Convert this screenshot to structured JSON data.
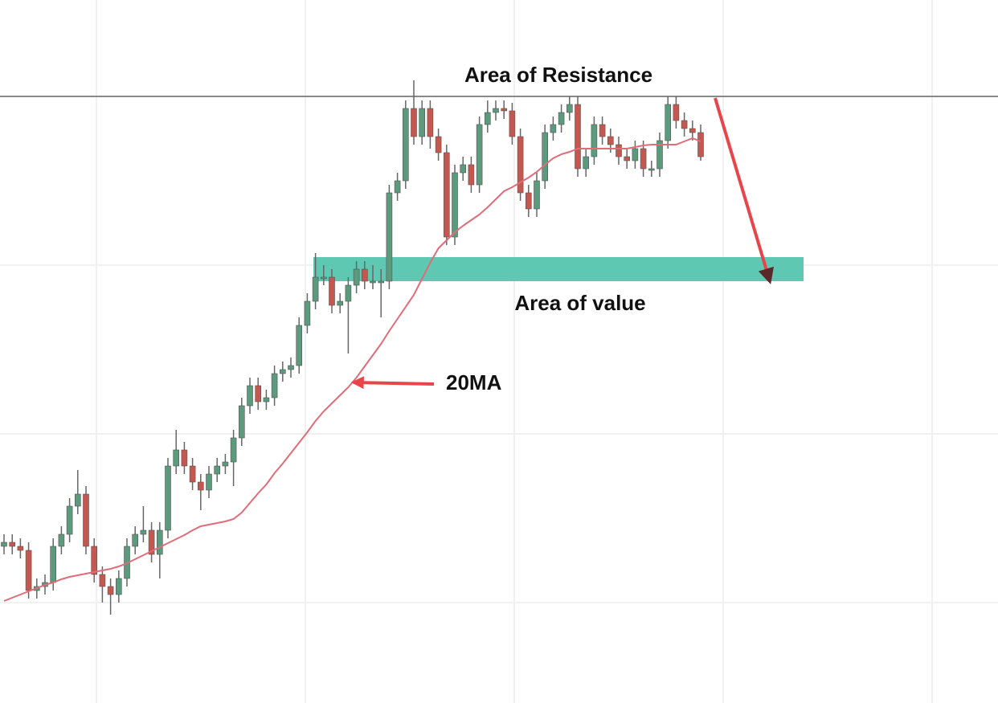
{
  "chart_data": {
    "type": "candlestick",
    "ylim": [
      0,
      875
    ],
    "up_color": "#5b9a7c",
    "down_color": "#c4574f",
    "open": [
      195,
      200,
      195,
      190,
      140,
      145,
      150,
      195,
      210,
      245,
      260,
      195,
      160,
      145,
      135,
      155,
      195,
      210,
      215,
      185,
      215,
      295,
      315,
      295,
      275,
      265,
      285,
      295,
      300,
      330,
      370,
      395,
      375,
      380,
      410,
      415,
      420,
      470,
      500,
      530,
      530,
      495,
      500,
      520,
      540,
      525,
      525,
      525,
      635,
      650,
      740,
      705,
      740,
      705,
      685,
      580,
      660,
      670,
      645,
      720,
      735,
      740,
      737,
      705,
      635,
      615,
      650,
      710,
      720,
      735,
      745,
      665,
      680,
      720,
      705,
      695,
      680,
      675,
      690,
      665,
      665,
      700,
      745,
      725,
      715,
      710
    ],
    "high": [
      210,
      210,
      205,
      200,
      155,
      160,
      205,
      220,
      255,
      290,
      270,
      205,
      170,
      155,
      165,
      205,
      220,
      245,
      225,
      225,
      305,
      340,
      325,
      305,
      285,
      295,
      305,
      310,
      340,
      380,
      405,
      405,
      390,
      420,
      425,
      430,
      480,
      510,
      560,
      545,
      540,
      510,
      530,
      550,
      550,
      545,
      540,
      645,
      660,
      750,
      775,
      750,
      750,
      715,
      695,
      670,
      680,
      680,
      730,
      750,
      750,
      750,
      747,
      715,
      645,
      660,
      720,
      730,
      745,
      755,
      755,
      690,
      730,
      730,
      715,
      705,
      690,
      700,
      700,
      675,
      710,
      755,
      755,
      735,
      725,
      720
    ],
    "low": [
      185,
      185,
      180,
      130,
      130,
      135,
      140,
      185,
      200,
      235,
      185,
      150,
      125,
      110,
      125,
      145,
      185,
      200,
      175,
      155,
      205,
      285,
      285,
      265,
      240,
      255,
      275,
      285,
      270,
      320,
      360,
      365,
      365,
      370,
      400,
      405,
      410,
      460,
      490,
      520,
      485,
      485,
      435,
      510,
      515,
      515,
      480,
      515,
      625,
      640,
      695,
      695,
      690,
      675,
      570,
      570,
      650,
      635,
      635,
      710,
      725,
      727,
      695,
      625,
      605,
      605,
      640,
      700,
      710,
      725,
      655,
      655,
      670,
      695,
      685,
      670,
      665,
      665,
      655,
      655,
      655,
      690,
      715,
      705,
      700,
      675
    ],
    "close": [
      200,
      195,
      190,
      140,
      145,
      150,
      195,
      210,
      245,
      260,
      195,
      160,
      145,
      135,
      155,
      195,
      210,
      215,
      185,
      215,
      295,
      315,
      295,
      275,
      265,
      285,
      295,
      300,
      330,
      370,
      395,
      375,
      380,
      410,
      415,
      420,
      470,
      500,
      530,
      530,
      495,
      500,
      520,
      540,
      525,
      525,
      525,
      635,
      650,
      740,
      705,
      740,
      705,
      685,
      580,
      660,
      670,
      645,
      720,
      735,
      740,
      737,
      705,
      635,
      615,
      650,
      710,
      720,
      735,
      745,
      665,
      680,
      720,
      705,
      695,
      680,
      675,
      690,
      665,
      665,
      700,
      745,
      725,
      715,
      710,
      680
    ],
    "moving_average": {
      "color": "#e06c78",
      "values": [
        127,
        131,
        135,
        139,
        143,
        147,
        150,
        154,
        157,
        159,
        161,
        163,
        165,
        167,
        170,
        174,
        179,
        184,
        189,
        194,
        199,
        204,
        209,
        215,
        220,
        222,
        224,
        226,
        229,
        237,
        249,
        261,
        272,
        286,
        298,
        311,
        324,
        337,
        351,
        363,
        373,
        383,
        393,
        405,
        419,
        433,
        447,
        463,
        478,
        493,
        508,
        528,
        548,
        566,
        576,
        586,
        594,
        601,
        608,
        617,
        627,
        637,
        642,
        648,
        654,
        661,
        670,
        678,
        683,
        686,
        690,
        690,
        690,
        690,
        690,
        690,
        690,
        692,
        694,
        695,
        695,
        695,
        695,
        699,
        703,
        699
      ]
    },
    "resistance": {
      "value": 755,
      "label": "Area of Resistance",
      "color": "#888888"
    },
    "value_zone": {
      "values": [
        525,
        555
      ],
      "label": "Area of value",
      "color": "#5ec8b2"
    },
    "ma_label": "20MA"
  }
}
